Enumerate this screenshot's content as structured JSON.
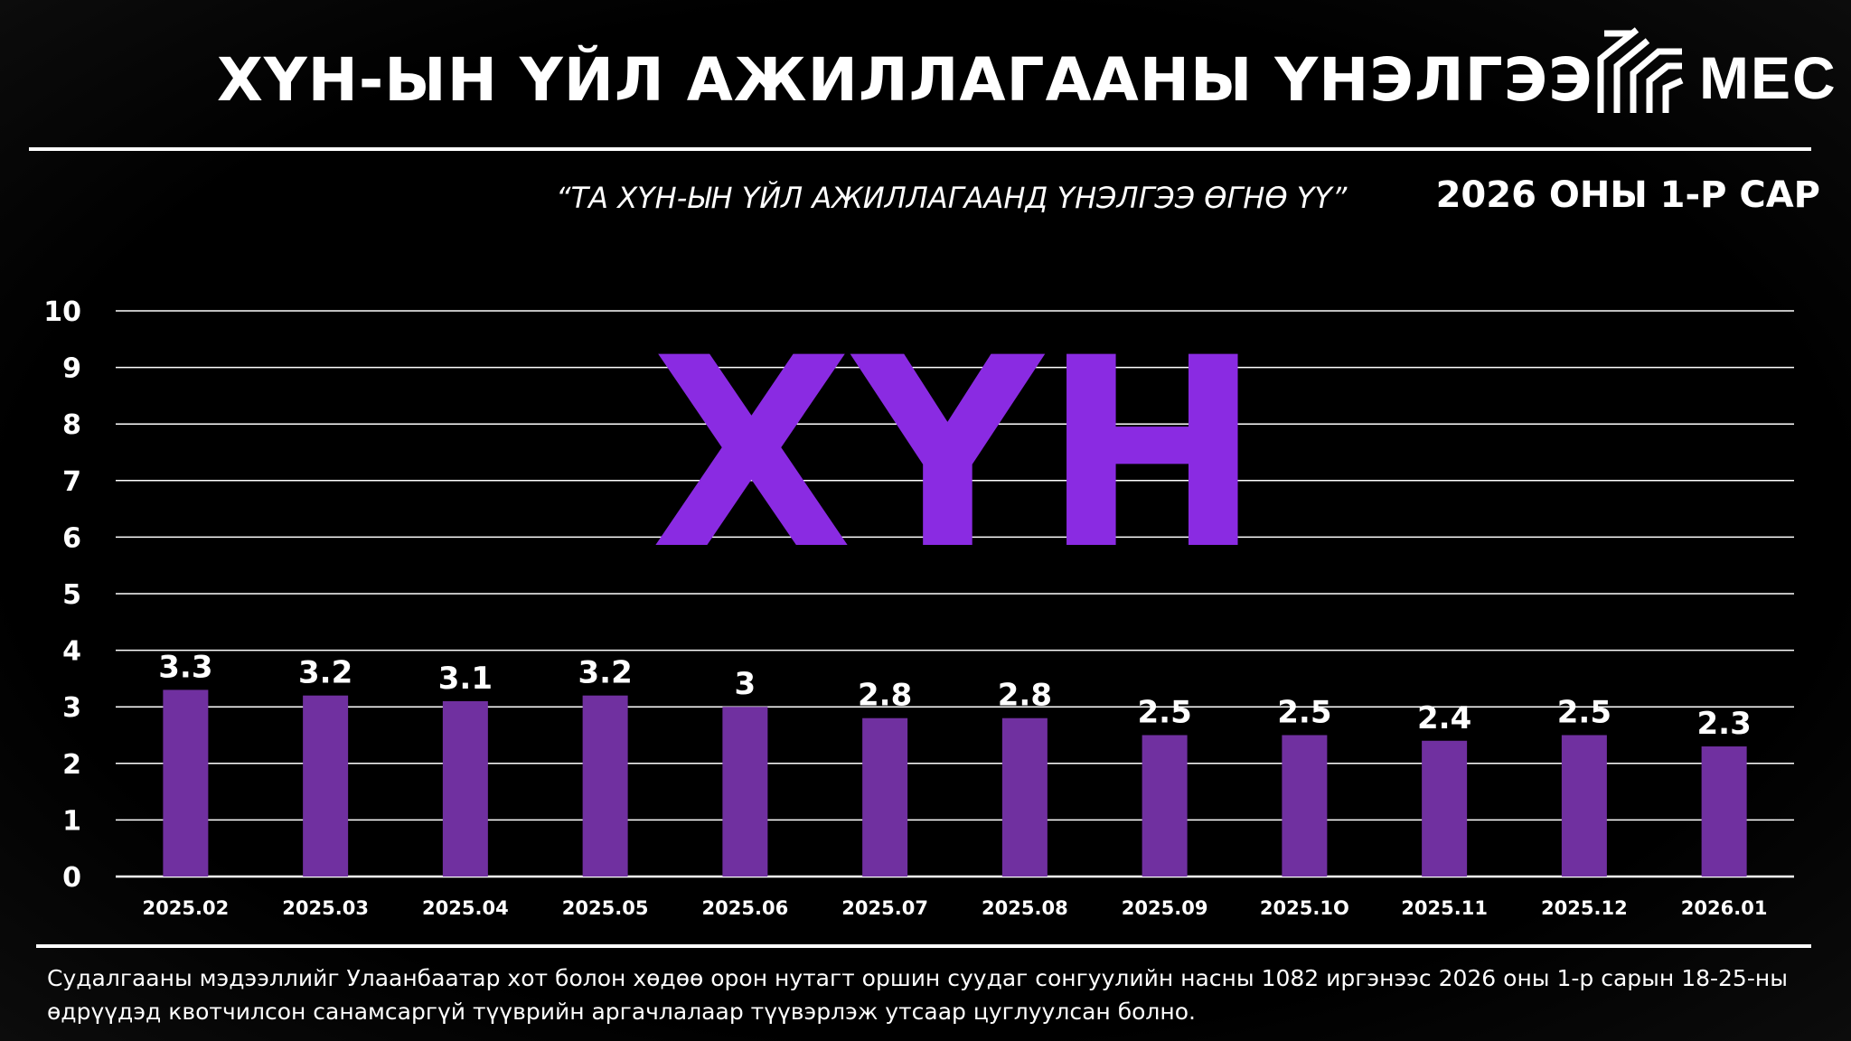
{
  "header": {
    "title": "ХҮН-ЫН ҮЙЛ АЖИЛЛАГААНЫ ҮНЭЛГЭЭ",
    "logo_text": "MEC",
    "subtitle": "“ТА ХҮН-ЫН ҮЙЛ АЖИЛЛАГААНД ҮНЭЛГЭЭ ӨГНӨ ҮҮ”",
    "period": "2026 ОНЫ 1-Р САР"
  },
  "watermark": {
    "text": "ХҮН",
    "color": "#8a2be2"
  },
  "colors": {
    "bar": "#7030a0",
    "grid": "#ffffff",
    "background": "#000000",
    "text": "#ffffff"
  },
  "chart_data": {
    "type": "bar",
    "categories": [
      "2025.02",
      "2025.03",
      "2025.04",
      "2025.05",
      "2025.06",
      "2025.07",
      "2025.08",
      "2025.09",
      "2025.1O",
      "2025.11",
      "2025.12",
      "2026.01"
    ],
    "values": [
      3.3,
      3.2,
      3.1,
      3.2,
      3,
      2.8,
      2.8,
      2.5,
      2.5,
      2.4,
      2.5,
      2.3
    ],
    "value_labels": [
      "3.3",
      "3.2",
      "3.1",
      "3.2",
      "3",
      "2.8",
      "2.8",
      "2.5",
      "2.5",
      "2.4",
      "2.5",
      "2.3"
    ],
    "y_ticks": [
      "0",
      "1",
      "2",
      "3",
      "4",
      "5",
      "6",
      "7",
      "8",
      "9",
      "10"
    ],
    "ylim": [
      0,
      10
    ],
    "grid": true,
    "legend": "none"
  },
  "footer": {
    "note": "Судалгааны мэдээллийг Улаанбаатар хот болон хөдөө орон нутагт оршин суудаг сонгуулийн насны 1082 иргэнээс 2026 оны 1-р сарын 18-25-ны өдрүүдэд квотчилсон санамсаргүй түүврийн аргачлалаар түүвэрлэж утсаар цуглуулсан болно."
  }
}
